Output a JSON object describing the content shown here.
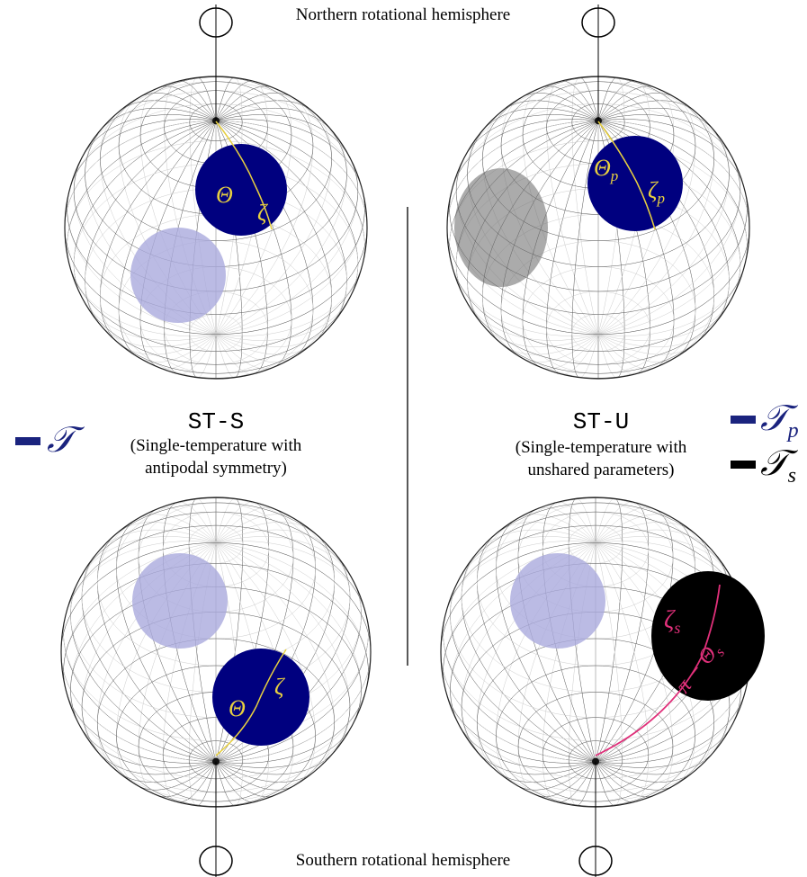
{
  "header": {
    "top": "Northern rotational hemisphere",
    "bottom": "Southern rotational hemisphere"
  },
  "panels": [
    {
      "label": "ST-S",
      "description": [
        "(Single-temperature with",
        "antipodal symmetry)"
      ]
    },
    {
      "label": "ST-U",
      "description": [
        "(Single-temperature with",
        "unshared parameters)"
      ]
    }
  ],
  "legend": [
    {
      "symbol": "𝒯"
    },
    {
      "symbol": "𝒯",
      "subscript": "p"
    },
    {
      "symbol": "𝒯",
      "subscript": "s"
    }
  ],
  "annotations": [
    {
      "text": "Θ"
    },
    {
      "text": "ζ"
    },
    {
      "text": "Θ",
      "subscript": "p"
    },
    {
      "text": "ζ",
      "subscript": "p"
    },
    {
      "text": "Θ"
    },
    {
      "text": "ζ"
    },
    {
      "text": "ζ",
      "subscript": "s"
    },
    {
      "text": "π − Θ",
      "subscript": "s"
    }
  ]
}
